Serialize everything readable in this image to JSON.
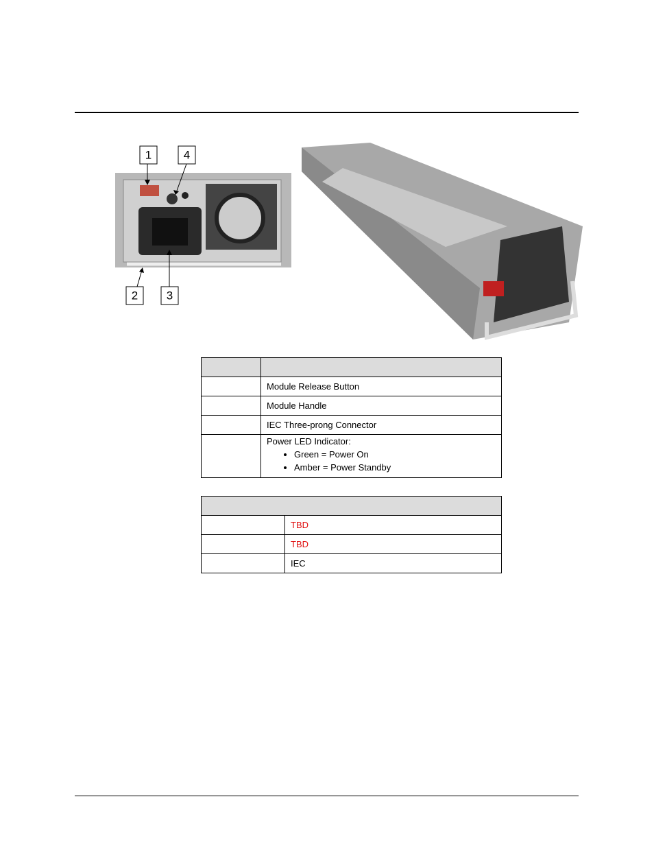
{
  "figure": {
    "callouts": [
      "1",
      "2",
      "3",
      "4"
    ]
  },
  "table_1": {
    "rows": [
      {
        "description": "Module Release Button"
      },
      {
        "description": "Module Handle"
      },
      {
        "description": "IEC Three-prong Connector"
      },
      {
        "description": "Power LED Indicator:",
        "bullets": [
          "Green = Power On",
          "Amber = Power Standby"
        ]
      }
    ]
  },
  "table_2": {
    "rows": [
      "TBD",
      "TBD",
      "IEC"
    ]
  }
}
